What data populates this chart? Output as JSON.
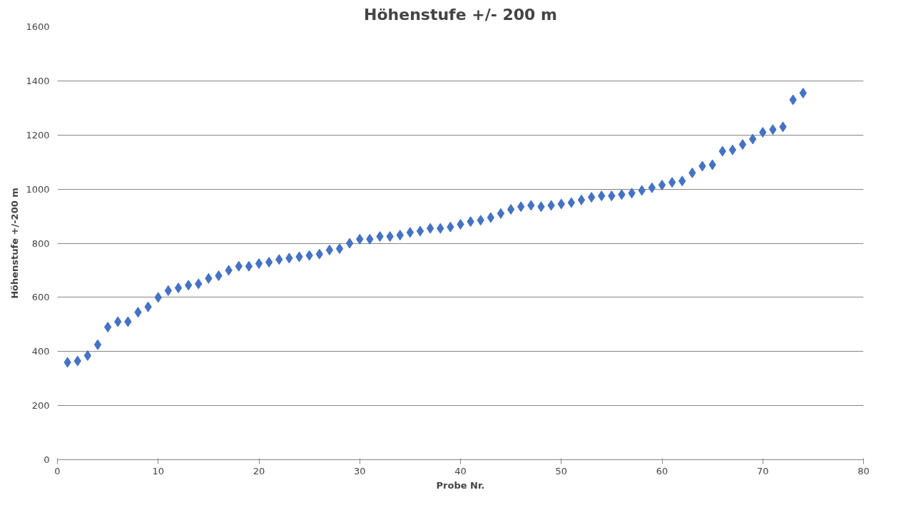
{
  "chart_data": {
    "type": "scatter",
    "title": "Höhenstufe +/- 200 m",
    "xlabel": "Probe Nr.",
    "ylabel": "Höhenstufe +/-200 m",
    "x": [
      1,
      2,
      3,
      4,
      5,
      6,
      7,
      8,
      9,
      10,
      11,
      12,
      13,
      14,
      15,
      16,
      17,
      18,
      19,
      20,
      21,
      22,
      23,
      24,
      25,
      26,
      27,
      28,
      29,
      30,
      31,
      32,
      33,
      34,
      35,
      36,
      37,
      38,
      39,
      40,
      41,
      42,
      43,
      44,
      45,
      46,
      47,
      48,
      49,
      50,
      51,
      52,
      53,
      54,
      55,
      56,
      57,
      58,
      59,
      60,
      61,
      62,
      63,
      64,
      65,
      66,
      67,
      68,
      69,
      70,
      71,
      72,
      73,
      74
    ],
    "series": [
      {
        "color": "#4472c4",
        "values": [
          360,
          365,
          385,
          425,
          490,
          510,
          510,
          545,
          565,
          600,
          625,
          635,
          645,
          650,
          670,
          680,
          700,
          715,
          715,
          725,
          730,
          740,
          745,
          750,
          755,
          760,
          775,
          780,
          800,
          815,
          815,
          825,
          825,
          830,
          840,
          845,
          855,
          855,
          860,
          870,
          880,
          885,
          895,
          910,
          925,
          935,
          940,
          935,
          940,
          945,
          950,
          960,
          970,
          975,
          975,
          980,
          985,
          995,
          1005,
          1015,
          1025,
          1030,
          1060,
          1085,
          1090,
          1140,
          1145,
          1165,
          1185,
          1210,
          1220,
          1230,
          1330,
          1355
        ]
      }
    ],
    "xlim": [
      0,
      80
    ],
    "xticks": [
      0,
      10,
      20,
      30,
      40,
      50,
      60,
      70,
      80
    ],
    "ylim": [
      0,
      1600
    ],
    "yticks": [
      0,
      200,
      400,
      600,
      800,
      1000,
      1200,
      1400,
      1600
    ],
    "grid": "y",
    "marker": "diamond"
  }
}
